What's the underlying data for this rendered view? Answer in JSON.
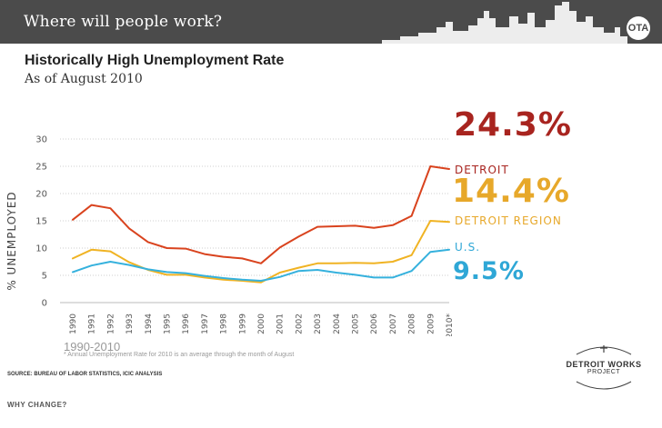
{
  "header": {
    "title": "Where will people work?",
    "logo_text": "OTA"
  },
  "chart_data": {
    "type": "line",
    "title": "Historically High Unemployment Rate",
    "subtitle": "As of August 2010",
    "ylabel": "% UNEMPLOYED",
    "xlabel": "1990-2010",
    "ylim": [
      0,
      30
    ],
    "yticks": [
      0,
      5,
      10,
      15,
      20,
      25,
      30
    ],
    "categories": [
      "1990",
      "1991",
      "1992",
      "1993",
      "1994",
      "1995",
      "1996",
      "1997",
      "1998",
      "1999",
      "2000",
      "2001",
      "2002",
      "2003",
      "2004",
      "2005",
      "2006",
      "2007",
      "2008",
      "2009",
      "2010*"
    ],
    "series": [
      {
        "name": "Detroit",
        "color": "#d9431e",
        "values": [
          15.2,
          17.9,
          17.3,
          13.6,
          11.1,
          10.0,
          9.9,
          8.9,
          8.4,
          8.1,
          7.2,
          10.1,
          12.1,
          13.9,
          14.0,
          14.1,
          13.7,
          14.2,
          15.9,
          25.0,
          24.5
        ]
      },
      {
        "name": "Detroit Region",
        "color": "#f0b323",
        "values": [
          8.1,
          9.7,
          9.4,
          7.4,
          6.0,
          5.1,
          5.1,
          4.6,
          4.2,
          4.0,
          3.7,
          5.5,
          6.4,
          7.2,
          7.2,
          7.3,
          7.2,
          7.5,
          8.7,
          15.0,
          14.8
        ]
      },
      {
        "name": "U.S.",
        "color": "#35b1dd",
        "values": [
          5.6,
          6.8,
          7.5,
          6.9,
          6.1,
          5.6,
          5.4,
          4.9,
          4.5,
          4.2,
          4.0,
          4.7,
          5.8,
          6.0,
          5.5,
          5.1,
          4.6,
          4.6,
          5.8,
          9.3,
          9.7
        ]
      }
    ],
    "callouts": {
      "detroit_value": "24.3%",
      "detroit_label": "DETROIT",
      "region_value": "14.4%",
      "region_label": "DETROIT REGION",
      "us_label": "U.S.",
      "us_value": "9.5%"
    },
    "footnote": "* Annual Unemployment Rate for 2010 is an average through the month of August",
    "source": "SOURCE: BUREAU OF LABOR STATISTICS, ICIC ANALYSIS"
  },
  "footer": {
    "section": "WHY CHANGE?",
    "logo_main": "DETROIT WORKS",
    "logo_sub": "PROJECT"
  }
}
